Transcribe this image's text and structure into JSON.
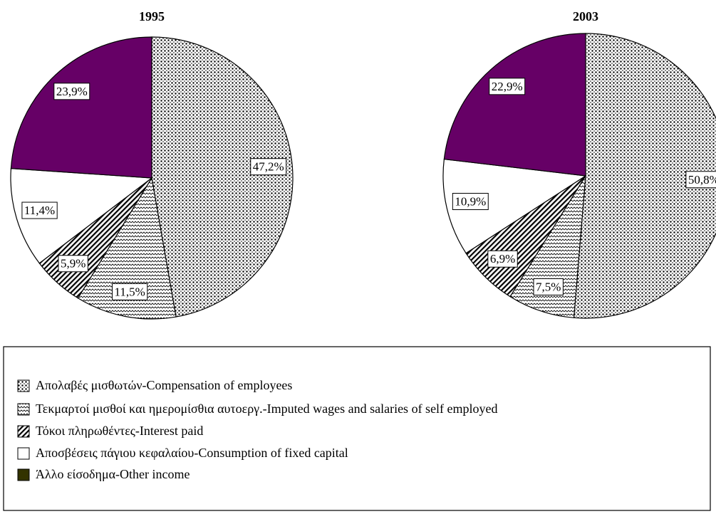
{
  "chart_data": [
    {
      "type": "pie",
      "title": "1995",
      "categories": [
        "Απολαβές μισθωτών-Compensation of employees",
        "Τεκμαρτοί μισθοί και ημερομίσθια αυτοεργ.-Imputed wages and salaries of self employed",
        "Τόκοι πληρωθέντες-Interest paid",
        "Αποσβέσεις πάγιου κεφαλαίου-Consumption of fixed capital",
        "Άλλο είσοδημα-Other income"
      ],
      "values": [
        47.2,
        11.5,
        5.9,
        11.4,
        23.9
      ],
      "value_labels": [
        "47,2%",
        "11,5%",
        "5,9%",
        "11,4%",
        "23,9%"
      ],
      "patterns": [
        "dots",
        "waves",
        "stripes",
        "none",
        "none"
      ],
      "colors": [
        "#ffffff",
        "#ffffff",
        "#ffffff",
        "#ffffff",
        "#660066"
      ],
      "legend_colors": [
        "#ffffff",
        "#ffffff",
        "#ffffff",
        "#ffffff",
        "#333300"
      ]
    },
    {
      "type": "pie",
      "title": "2003",
      "values": [
        50.8,
        7.5,
        6.9,
        10.9,
        22.9
      ],
      "value_labels": [
        "50,8%",
        "7,5%",
        "6,9%",
        "10,9%",
        "22,9%"
      ],
      "patterns": [
        "dots",
        "waves",
        "stripes",
        "none",
        "none"
      ],
      "colors": [
        "#ffffff",
        "#ffffff",
        "#ffffff",
        "#ffffff",
        "#660066"
      ]
    }
  ]
}
